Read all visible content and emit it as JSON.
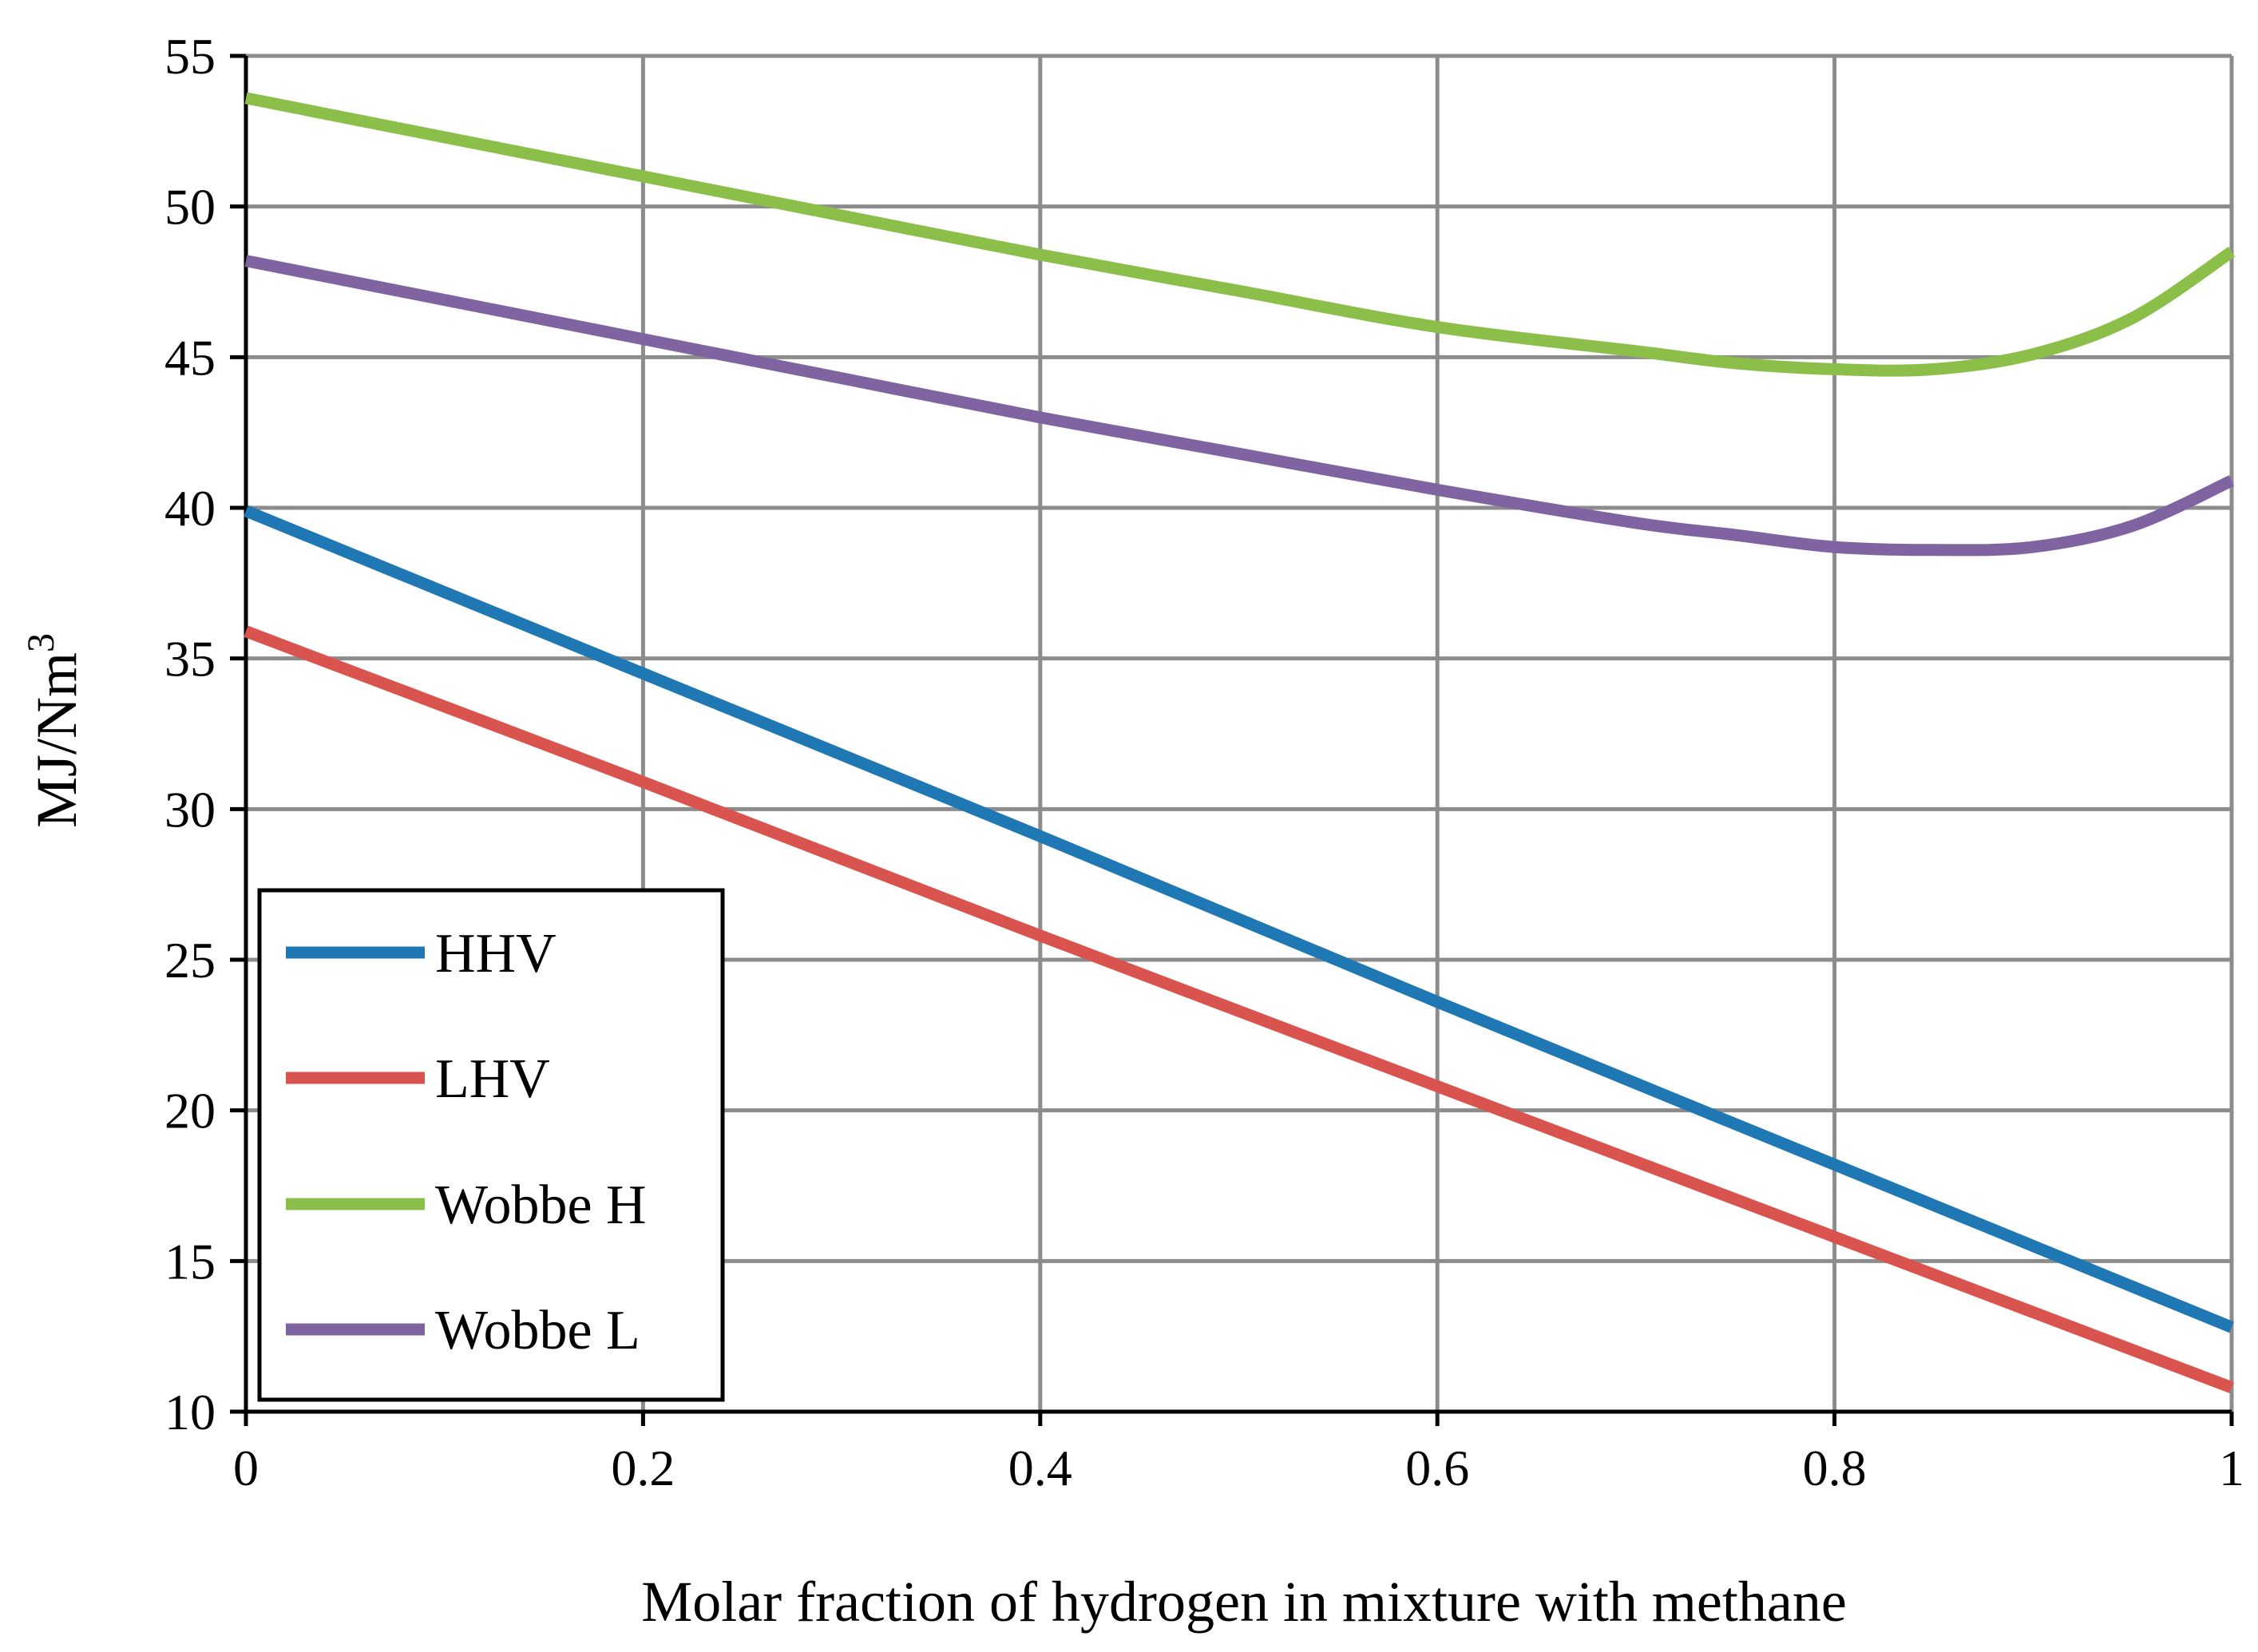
{
  "chart_data": {
    "type": "line",
    "xlabel": "Molar fraction of hydrogen in mixture with methane",
    "ylabel": "MJ/Nm",
    "ylabel_superscript": "3",
    "xlim": [
      0,
      1
    ],
    "ylim": [
      10,
      55
    ],
    "x_ticks": [
      "0",
      "0.2",
      "0.4",
      "0.6",
      "0.8",
      "1"
    ],
    "y_ticks": [
      "10",
      "15",
      "20",
      "25",
      "30",
      "35",
      "40",
      "45",
      "50",
      "55"
    ],
    "grid": true,
    "legend_position": "bottom-left",
    "series": [
      {
        "name": "HHV",
        "color": "#1f77b4",
        "x": [
          0,
          0.2,
          0.4,
          0.6,
          0.8,
          1.0
        ],
        "y": [
          39.9,
          34.5,
          29.1,
          23.6,
          18.2,
          12.8
        ]
      },
      {
        "name": "LHV",
        "color": "#d9534f",
        "x": [
          0,
          0.2,
          0.4,
          0.6,
          0.8,
          1.0
        ],
        "y": [
          35.9,
          30.9,
          25.8,
          20.8,
          15.8,
          10.8
        ]
      },
      {
        "name": "Wobbe H",
        "color": "#8bbf4a",
        "x": [
          0,
          0.1,
          0.2,
          0.3,
          0.4,
          0.5,
          0.6,
          0.7,
          0.75,
          0.8,
          0.85,
          0.9,
          0.95,
          1.0
        ],
        "y": [
          53.6,
          52.3,
          51.0,
          49.7,
          48.4,
          47.2,
          46.0,
          45.2,
          44.8,
          44.6,
          44.6,
          45.1,
          46.3,
          48.5
        ]
      },
      {
        "name": "Wobbe L",
        "color": "#8064a2",
        "x": [
          0,
          0.1,
          0.2,
          0.3,
          0.4,
          0.5,
          0.6,
          0.7,
          0.75,
          0.8,
          0.85,
          0.9,
          0.95,
          1.0
        ],
        "y": [
          48.2,
          46.9,
          45.6,
          44.3,
          43.0,
          41.8,
          40.6,
          39.5,
          39.1,
          38.7,
          38.6,
          38.7,
          39.4,
          40.9
        ]
      }
    ]
  }
}
